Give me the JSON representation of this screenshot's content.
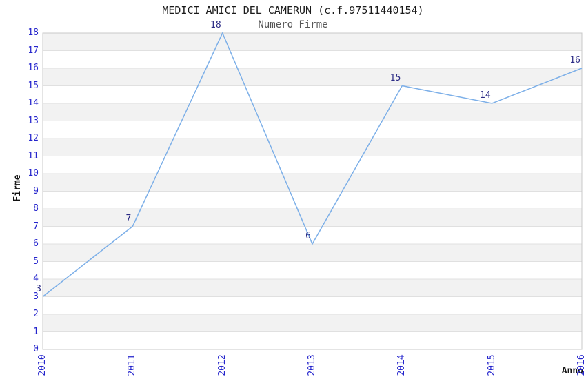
{
  "chart_data": {
    "type": "line",
    "title": "MEDICI AMICI DEL CAMERUN (c.f.97511440154)",
    "subtitle": "Numero Firme",
    "xlabel": "Anno",
    "ylabel": "Firme",
    "categories": [
      "2010",
      "2011",
      "2012",
      "2013",
      "2014",
      "2015",
      "2016"
    ],
    "values": [
      3,
      7,
      18,
      6,
      15,
      14,
      16
    ],
    "data_labels": [
      "3",
      "7",
      "18",
      "6",
      "15",
      "14",
      "16"
    ],
    "ylim": [
      0,
      18
    ],
    "y_tick_step": 1,
    "grid": "horizontal",
    "legend": "none",
    "colors": {
      "line": "#7cafe8",
      "tick_label": "#2424cc",
      "data_label": "#2b2b85",
      "band": "#f2f2f2",
      "gridline": "#e0e0e0",
      "border": "#c8c8c8",
      "title": "#1a1a1a",
      "subtitle": "#555555",
      "axis_title": "#111111",
      "background": "#ffffff"
    }
  }
}
